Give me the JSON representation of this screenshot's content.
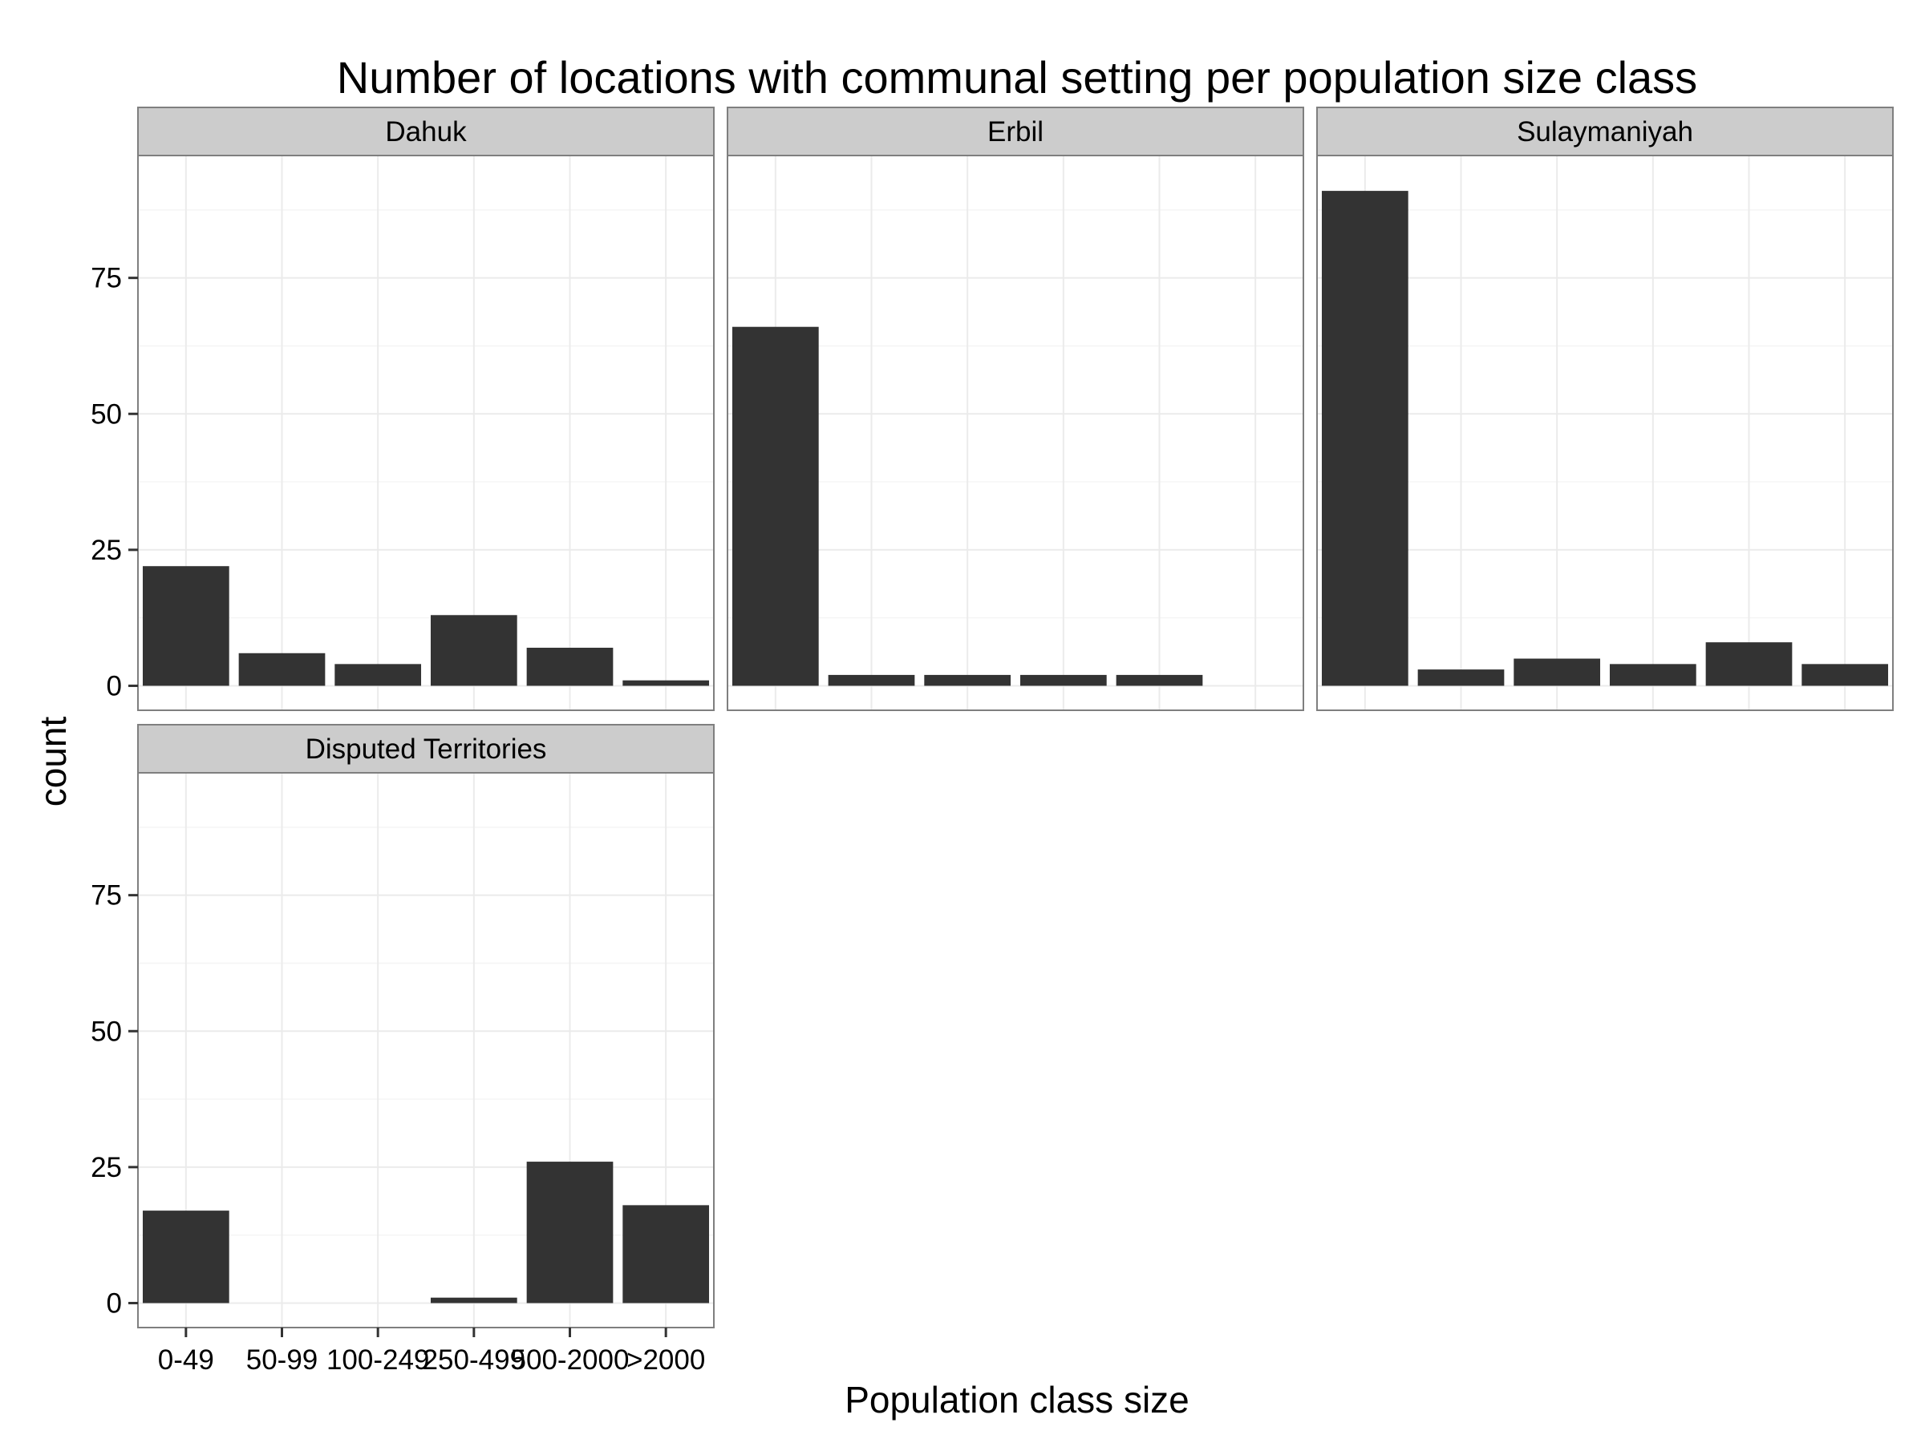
{
  "chart_data": {
    "type": "bar",
    "title": "Number of locations with communal setting per population size class",
    "xlabel": "Population class size",
    "ylabel": "count",
    "categories": [
      "0-49",
      "50-99",
      "100-249",
      "250-499",
      "500-2000",
      ">2000"
    ],
    "ylim": [
      -4.5,
      97.5
    ],
    "yticks": [
      0,
      25,
      50,
      75
    ],
    "grid": true,
    "bar_color": "#333333",
    "panels": [
      {
        "name": "Dahuk",
        "values": [
          22,
          6,
          4,
          13,
          7,
          1
        ]
      },
      {
        "name": "Erbil",
        "values": [
          66,
          2,
          2,
          2,
          2,
          0
        ]
      },
      {
        "name": "Sulaymaniyah",
        "values": [
          91,
          3,
          5,
          4,
          8,
          4
        ]
      },
      {
        "name": "Disputed Territories",
        "values": [
          17,
          0,
          0,
          1,
          26,
          18
        ]
      }
    ]
  }
}
